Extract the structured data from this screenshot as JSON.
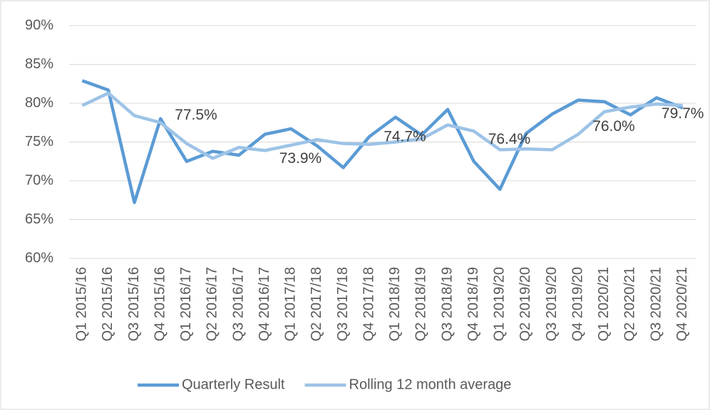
{
  "chart_data": {
    "type": "line",
    "categories": [
      "Q1 2015/16",
      "Q2 2015/16",
      "Q3 2015/16",
      "Q4 2015/16",
      "Q1 2016/17",
      "Q2 2016/17",
      "Q3 2016/17",
      "Q4 2016/17",
      "Q1 2017/18",
      "Q2 2017/18",
      "Q3 2017/18",
      "Q4 2017/18",
      "Q1 2018/19",
      "Q2 2018/19",
      "Q3 2018/19",
      "Q4 2018/19",
      "Q1 2019/20",
      "Q2 2019/20",
      "Q3 2019/20",
      "Q4 2019/20",
      "Q1 2020/21",
      "Q2 2020/21",
      "Q3 2020/21",
      "Q4 2020/21"
    ],
    "series": [
      {
        "name": "Quarterly Result",
        "color": "#5b9bd5",
        "values": [
          82.9,
          81.7,
          67.2,
          78.0,
          72.5,
          73.8,
          73.3,
          76.0,
          76.7,
          74.5,
          71.7,
          75.7,
          78.2,
          75.9,
          79.2,
          72.5,
          68.9,
          76.1,
          78.6,
          80.4,
          80.2,
          78.5,
          80.7,
          79.4
        ]
      },
      {
        "name": "Rolling 12 month average",
        "color": "#9dc3e6",
        "values": [
          79.7,
          81.3,
          78.4,
          77.5,
          74.8,
          72.9,
          74.3,
          73.9,
          74.6,
          75.3,
          74.8,
          74.7,
          75.0,
          75.4,
          77.2,
          76.4,
          74.0,
          74.1,
          74.0,
          76.0,
          78.9,
          79.5,
          79.9,
          79.7
        ],
        "value_labels": [
          null,
          null,
          null,
          "77.5%",
          null,
          null,
          null,
          "73.9%",
          null,
          null,
          null,
          "74.7%",
          null,
          null,
          null,
          "76.4%",
          null,
          null,
          null,
          "76.0%",
          null,
          null,
          null,
          "79.7%"
        ]
      }
    ],
    "ylim": [
      60,
      90
    ],
    "yticks": [
      {
        "value": 60,
        "label": "60%"
      },
      {
        "value": 65,
        "label": "65%"
      },
      {
        "value": 70,
        "label": "70%"
      },
      {
        "value": 75,
        "label": "75%"
      },
      {
        "value": 80,
        "label": "80%"
      },
      {
        "value": 85,
        "label": "85%"
      },
      {
        "value": 90,
        "label": "90%"
      }
    ],
    "grid": true,
    "legend": "bottom"
  }
}
